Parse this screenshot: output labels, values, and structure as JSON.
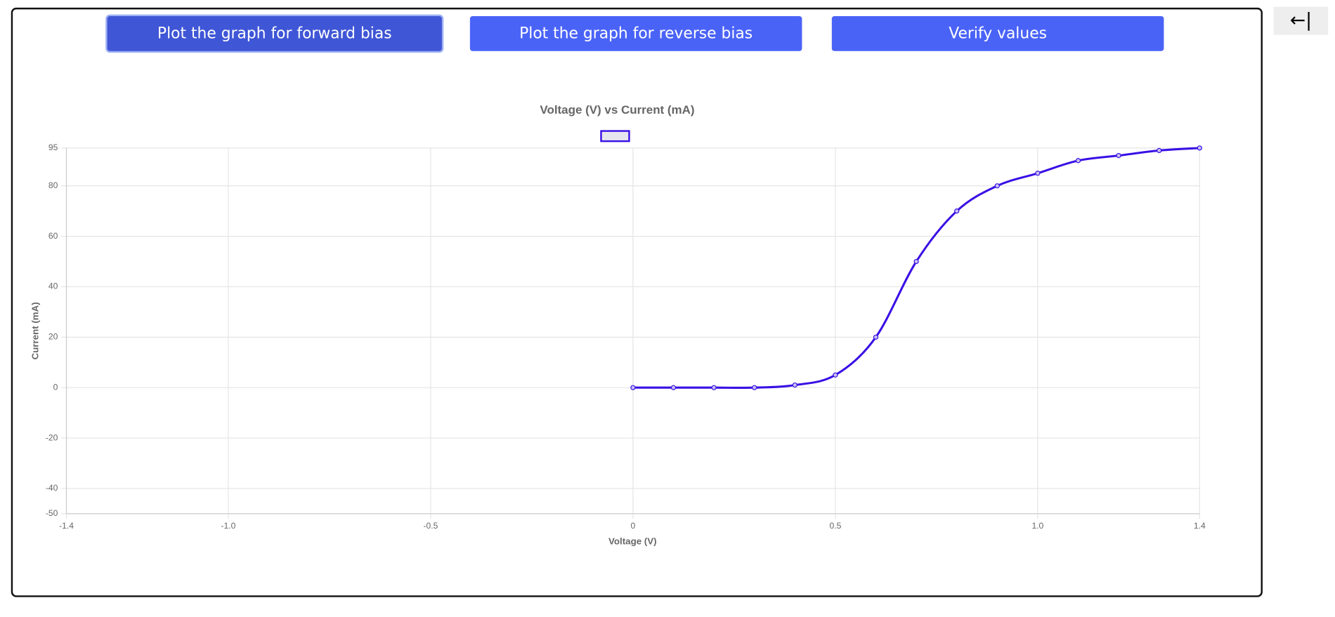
{
  "buttons": [
    "Plot the graph for forward bias",
    "Plot the graph for reverse bias",
    "Verify values"
  ],
  "back_button": "←|",
  "chart_data": {
    "type": "line",
    "title": "Voltage (V) vs Current (mA)",
    "x_label": "Voltage (V)",
    "y_label": "Current (mA)",
    "x": [
      0,
      0.1,
      0.2,
      0.3,
      0.4,
      0.5,
      0.6,
      0.7,
      0.8,
      0.9,
      1.0,
      1.1,
      1.2,
      1.3,
      1.4
    ],
    "series": [
      {
        "color": "#3a10e5",
        "values": [
          0,
          0,
          0,
          0,
          1,
          5,
          20,
          50,
          70,
          80,
          85,
          90,
          92,
          94,
          95
        ]
      }
    ],
    "xlim": [
      -1.4,
      1.4
    ],
    "xticks": [
      -1.4,
      {
        "value": -1.0,
        "label": "-1.0"
      },
      -0.5,
      0,
      0.5,
      {
        "value": 1.0,
        "label": "1.0"
      },
      1.4
    ],
    "ylim": [
      -50,
      95
    ],
    "yticks": [
      -50,
      -40,
      -20,
      0,
      20,
      40,
      60,
      80,
      95
    ],
    "grid": true
  }
}
